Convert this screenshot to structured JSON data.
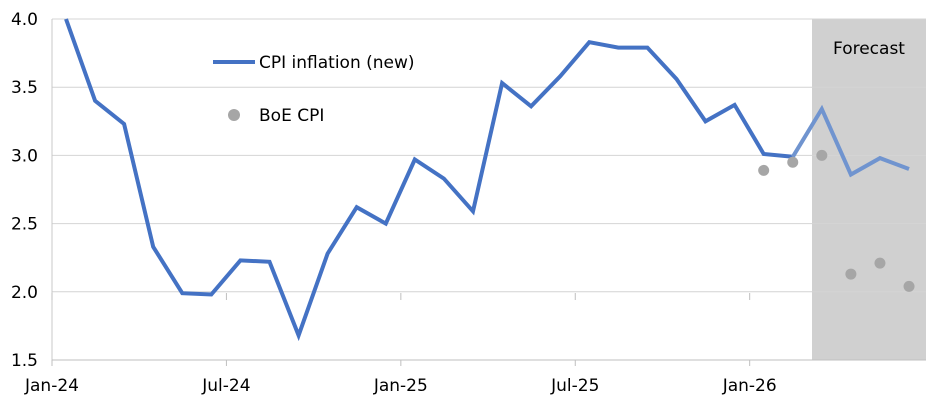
{
  "chart_data": {
    "type": "line",
    "title": "",
    "xlabel": "",
    "ylabel": "",
    "ylim": [
      1.5,
      4.0
    ],
    "yticks": [
      "1.5",
      "2.0",
      "2.5",
      "3.0",
      "3.5",
      "4.0"
    ],
    "xticks": [
      "Jan-24",
      "Jul-24",
      "Jan-25",
      "Jul-25",
      "Jan-26"
    ],
    "grid": "horizontal",
    "legend_position": "top-left",
    "forecast": {
      "label": "Forecast",
      "start_index": 26,
      "end_index": 30,
      "fill_color": "#d0d0d0"
    },
    "x": [
      "Jan-24",
      "Feb-24",
      "Mar-24",
      "Apr-24",
      "May-24",
      "Jun-24",
      "Jul-24",
      "Aug-24",
      "Sep-24",
      "Oct-24",
      "Nov-24",
      "Dec-24",
      "Jan-25",
      "Feb-25",
      "Mar-25",
      "Apr-25",
      "May-25",
      "Jun-25",
      "Jul-25",
      "Aug-25",
      "Sep-25",
      "Oct-25",
      "Nov-25",
      "Dec-25",
      "Jan-26",
      "Feb-26",
      "Mar-26",
      "Apr-26",
      "May-26",
      "Jun-26"
    ],
    "series": [
      {
        "name": "CPI inflation (new)",
        "kind": "line",
        "color": "#4472c4",
        "forecast_color": "#7094cf",
        "values": [
          4.0,
          3.4,
          3.23,
          2.33,
          1.99,
          1.98,
          2.23,
          2.22,
          1.68,
          2.28,
          2.62,
          2.5,
          2.97,
          2.83,
          2.59,
          3.53,
          3.36,
          3.58,
          3.83,
          3.79,
          3.79,
          3.56,
          3.25,
          3.37,
          3.01,
          2.99,
          3.34,
          2.86,
          2.98,
          2.9
        ]
      },
      {
        "name": "BoE CPI",
        "kind": "scatter",
        "color": "#a6a6a6",
        "values": [
          null,
          null,
          null,
          null,
          null,
          null,
          null,
          null,
          null,
          null,
          null,
          null,
          null,
          null,
          null,
          null,
          null,
          null,
          null,
          null,
          null,
          null,
          null,
          null,
          2.89,
          2.95,
          3.0,
          2.13,
          2.21,
          2.04
        ]
      }
    ]
  }
}
